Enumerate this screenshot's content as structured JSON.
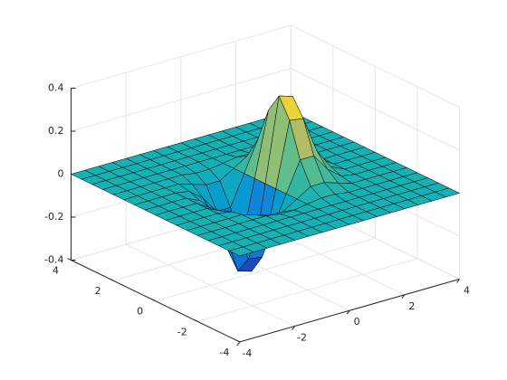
{
  "chart_data": {
    "type": "surface",
    "x": [
      -4,
      -3.5,
      -3,
      -2.5,
      -2,
      -1.5,
      -1,
      -0.5,
      0,
      0.5,
      1,
      1.5,
      2,
      2.5,
      3,
      3.5,
      4
    ],
    "y": [
      -4,
      -3.5,
      -3,
      -2.5,
      -2,
      -1.5,
      -1,
      -0.5,
      0,
      0.5,
      1,
      1.5,
      2,
      2.5,
      3,
      3.5,
      4
    ],
    "z": [
      [
        0,
        0,
        0,
        0,
        0,
        0,
        0,
        0,
        0,
        0,
        0,
        0,
        0,
        0,
        0,
        0,
        0
      ],
      [
        0,
        0,
        0,
        0,
        0,
        0,
        0,
        0,
        0,
        0,
        0,
        0,
        0,
        0,
        0,
        0,
        0
      ],
      [
        0,
        0,
        0,
        0,
        0,
        0,
        0,
        0,
        0,
        0,
        0,
        0,
        0,
        0,
        0,
        0,
        0
      ],
      [
        0,
        0,
        0,
        0,
        0,
        0,
        0,
        0,
        0,
        0,
        0,
        0,
        0,
        0,
        0,
        0,
        0
      ],
      [
        0,
        0,
        0,
        0,
        0,
        0,
        -0.01,
        -0.01,
        0,
        0.01,
        0.01,
        0,
        0,
        0,
        0,
        0,
        0
      ],
      [
        0,
        0,
        0,
        0,
        0,
        -0.02,
        -0.04,
        -0.04,
        0,
        0.04,
        0.04,
        0.02,
        0,
        0,
        0,
        0,
        0
      ],
      [
        0,
        0,
        0,
        0,
        -0.01,
        -0.06,
        -0.14,
        -0.14,
        0,
        0.14,
        0.14,
        0.06,
        0.01,
        0,
        0,
        0,
        0
      ],
      [
        0,
        0,
        0,
        0,
        -0.03,
        -0.12,
        -0.29,
        -0.3,
        0,
        0.3,
        0.29,
        0.12,
        0.03,
        0,
        0,
        0,
        0
      ],
      [
        0,
        0,
        0,
        0,
        -0.04,
        -0.16,
        -0.37,
        -0.39,
        0,
        0.39,
        0.37,
        0.16,
        0.04,
        0,
        0,
        0,
        0
      ],
      [
        0,
        0,
        0,
        0,
        -0.03,
        -0.12,
        -0.29,
        -0.3,
        0,
        0.3,
        0.29,
        0.12,
        0.03,
        0,
        0,
        0,
        0
      ],
      [
        0,
        0,
        0,
        0,
        -0.01,
        -0.06,
        -0.14,
        -0.14,
        0,
        0.14,
        0.14,
        0.06,
        0.01,
        0,
        0,
        0,
        0
      ],
      [
        0,
        0,
        0,
        0,
        0,
        -0.02,
        -0.04,
        -0.04,
        0,
        0.04,
        0.04,
        0.02,
        0,
        0,
        0,
        0,
        0
      ],
      [
        0,
        0,
        0,
        0,
        0,
        0,
        -0.01,
        -0.01,
        0,
        0.01,
        0.01,
        0,
        0,
        0,
        0,
        0,
        0
      ],
      [
        0,
        0,
        0,
        0,
        0,
        0,
        0,
        0,
        0,
        0,
        0,
        0,
        0,
        0,
        0,
        0,
        0
      ],
      [
        0,
        0,
        0,
        0,
        0,
        0,
        0,
        0,
        0,
        0,
        0,
        0,
        0,
        0,
        0,
        0,
        0
      ],
      [
        0,
        0,
        0,
        0,
        0,
        0,
        0,
        0,
        0,
        0,
        0,
        0,
        0,
        0,
        0,
        0,
        0
      ],
      [
        0,
        0,
        0,
        0,
        0,
        0,
        0,
        0,
        0,
        0,
        0,
        0,
        0,
        0,
        0,
        0,
        0
      ]
    ],
    "xlim": [
      -4,
      4
    ],
    "ylim": [
      -4,
      4
    ],
    "zlim": [
      -0.4,
      0.4
    ],
    "xticks": [
      -4,
      -2,
      0,
      2,
      4
    ],
    "yticks": [
      -4,
      -2,
      0,
      2,
      4
    ],
    "zticks": [
      -0.4,
      -0.2,
      0,
      0.2,
      0.4
    ],
    "grid": true,
    "colormap": [
      "#352a87",
      "#0f5cdd",
      "#127dd8",
      "#079ccf",
      "#15b1b4",
      "#59bd8c",
      "#a5be6b",
      "#e1b952",
      "#f9fb0e"
    ]
  }
}
